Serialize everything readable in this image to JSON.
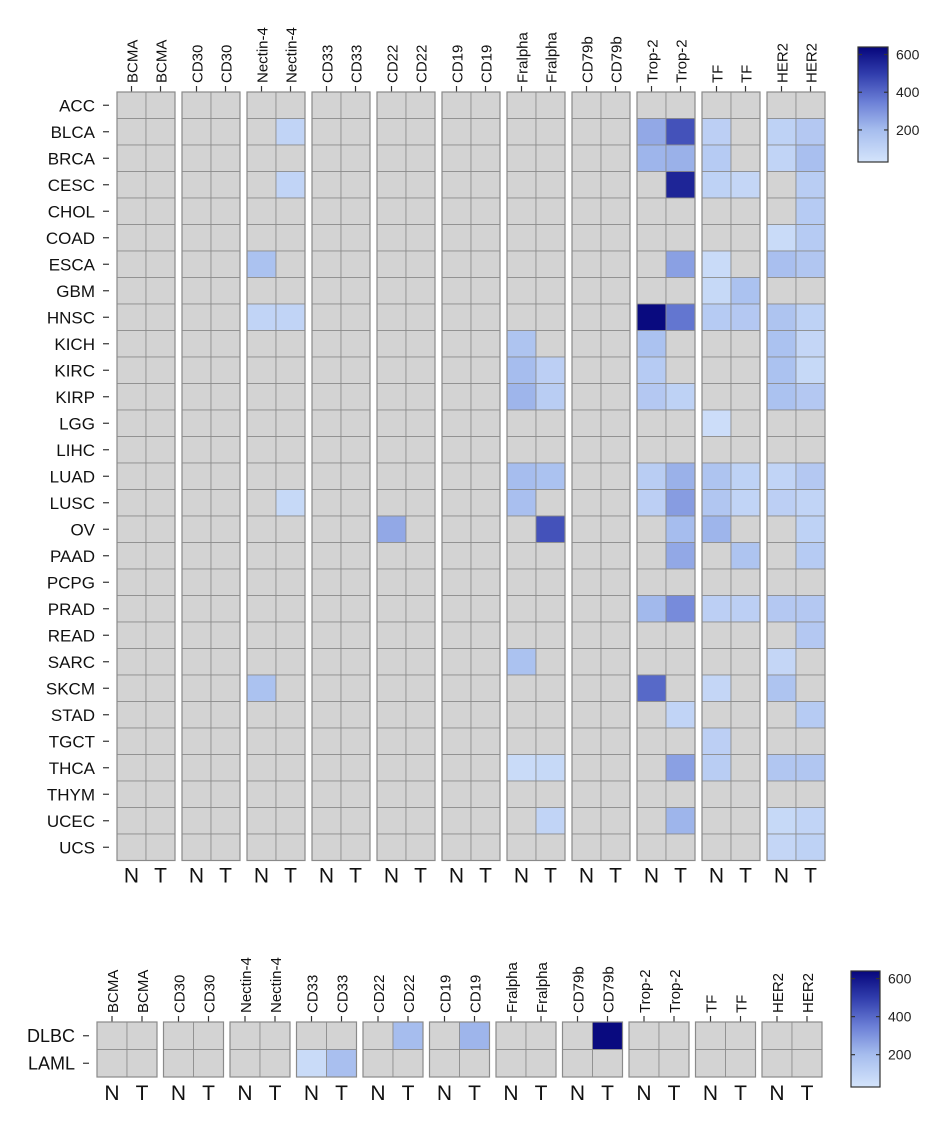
{
  "chart_data": [
    {
      "type": "heatmap",
      "antigens": [
        "BCMA",
        "CD30",
        "Nectin-4",
        "CD33",
        "CD22",
        "CD19",
        "Fralpha",
        "CD79b",
        "Trop-2",
        "TF",
        "HER2"
      ],
      "tissues": [
        "N",
        "T"
      ],
      "rows": [
        "ACC",
        "BLCA",
        "BRCA",
        "CESC",
        "CHOL",
        "COAD",
        "ESCA",
        "GBM",
        "HNSC",
        "KICH",
        "KIRC",
        "KIRP",
        "LGG",
        "LIHC",
        "LUAD",
        "LUSC",
        "OV",
        "PAAD",
        "PCPG",
        "PRAD",
        "READ",
        "SARC",
        "SKCM",
        "STAD",
        "TGCT",
        "THCA",
        "THYM",
        "UCEC",
        "UCS"
      ],
      "missing_color": "#d3d3d3",
      "colorbar": {
        "range": [
          30,
          640
        ],
        "ticks": [
          200,
          400,
          600
        ],
        "low_color": "#d4e4fb",
        "high_color": "#06067c"
      },
      "cells": [
        [
          "BLCA",
          "Nectin-4",
          "T",
          100
        ],
        [
          "BLCA",
          "Trop-2",
          "N",
          250
        ],
        [
          "BLCA",
          "Trop-2",
          "T",
          450
        ],
        [
          "BLCA",
          "TF",
          "N",
          120
        ],
        [
          "BLCA",
          "HER2",
          "N",
          110
        ],
        [
          "BLCA",
          "HER2",
          "T",
          150
        ],
        [
          "BRCA",
          "Trop-2",
          "N",
          220
        ],
        [
          "BRCA",
          "Trop-2",
          "T",
          230
        ],
        [
          "BRCA",
          "TF",
          "N",
          140
        ],
        [
          "BRCA",
          "HER2",
          "N",
          100
        ],
        [
          "BRCA",
          "HER2",
          "T",
          190
        ],
        [
          "CESC",
          "Nectin-4",
          "T",
          100
        ],
        [
          "CESC",
          "Trop-2",
          "T",
          560
        ],
        [
          "CESC",
          "TF",
          "N",
          110
        ],
        [
          "CESC",
          "TF",
          "T",
          90
        ],
        [
          "CESC",
          "HER2",
          "T",
          130
        ],
        [
          "CHOL",
          "HER2",
          "T",
          140
        ],
        [
          "COAD",
          "HER2",
          "N",
          70
        ],
        [
          "COAD",
          "HER2",
          "T",
          140
        ],
        [
          "ESCA",
          "Nectin-4",
          "N",
          180
        ],
        [
          "ESCA",
          "Trop-2",
          "T",
          270
        ],
        [
          "ESCA",
          "TF",
          "N",
          70
        ],
        [
          "ESCA",
          "HER2",
          "N",
          190
        ],
        [
          "ESCA",
          "HER2",
          "T",
          160
        ],
        [
          "GBM",
          "TF",
          "N",
          80
        ],
        [
          "GBM",
          "TF",
          "T",
          180
        ],
        [
          "HNSC",
          "Nectin-4",
          "N",
          100
        ],
        [
          "HNSC",
          "Nectin-4",
          "T",
          100
        ],
        [
          "HNSC",
          "Trop-2",
          "N",
          630
        ],
        [
          "HNSC",
          "Trop-2",
          "T",
          370
        ],
        [
          "HNSC",
          "TF",
          "N",
          140
        ],
        [
          "HNSC",
          "TF",
          "T",
          150
        ],
        [
          "HNSC",
          "HER2",
          "N",
          170
        ],
        [
          "HNSC",
          "HER2",
          "T",
          110
        ],
        [
          "KICH",
          "Fralpha",
          "N",
          170
        ],
        [
          "KICH",
          "Trop-2",
          "N",
          180
        ],
        [
          "KICH",
          "HER2",
          "N",
          180
        ],
        [
          "KICH",
          "HER2",
          "T",
          90
        ],
        [
          "KIRC",
          "Fralpha",
          "N",
          200
        ],
        [
          "KIRC",
          "Fralpha",
          "T",
          120
        ],
        [
          "KIRC",
          "Trop-2",
          "N",
          140
        ],
        [
          "KIRC",
          "HER2",
          "N",
          180
        ],
        [
          "KIRC",
          "HER2",
          "T",
          80
        ],
        [
          "KIRP",
          "Fralpha",
          "N",
          220
        ],
        [
          "KIRP",
          "Fralpha",
          "T",
          130
        ],
        [
          "KIRP",
          "Trop-2",
          "N",
          150
        ],
        [
          "KIRP",
          "Trop-2",
          "T",
          110
        ],
        [
          "KIRP",
          "HER2",
          "N",
          180
        ],
        [
          "KIRP",
          "HER2",
          "T",
          150
        ],
        [
          "LGG",
          "TF",
          "N",
          60
        ],
        [
          "LUAD",
          "Fralpha",
          "N",
          200
        ],
        [
          "LUAD",
          "Fralpha",
          "T",
          180
        ],
        [
          "LUAD",
          "Trop-2",
          "N",
          130
        ],
        [
          "LUAD",
          "Trop-2",
          "T",
          230
        ],
        [
          "LUAD",
          "TF",
          "N",
          170
        ],
        [
          "LUAD",
          "TF",
          "T",
          110
        ],
        [
          "LUAD",
          "HER2",
          "N",
          100
        ],
        [
          "LUAD",
          "HER2",
          "T",
          150
        ],
        [
          "LUSC",
          "Nectin-4",
          "T",
          80
        ],
        [
          "LUSC",
          "Fralpha",
          "N",
          190
        ],
        [
          "LUSC",
          "Trop-2",
          "N",
          120
        ],
        [
          "LUSC",
          "Trop-2",
          "T",
          280
        ],
        [
          "LUSC",
          "TF",
          "N",
          160
        ],
        [
          "LUSC",
          "TF",
          "T",
          100
        ],
        [
          "LUSC",
          "HER2",
          "N",
          120
        ],
        [
          "LUSC",
          "HER2",
          "T",
          100
        ],
        [
          "OV",
          "CD22",
          "N",
          250
        ],
        [
          "OV",
          "Fralpha",
          "T",
          450
        ],
        [
          "OV",
          "Trop-2",
          "T",
          200
        ],
        [
          "OV",
          "TF",
          "N",
          220
        ],
        [
          "OV",
          "HER2",
          "T",
          110
        ],
        [
          "PAAD",
          "Trop-2",
          "T",
          250
        ],
        [
          "PAAD",
          "TF",
          "T",
          170
        ],
        [
          "PAAD",
          "HER2",
          "T",
          140
        ],
        [
          "PRAD",
          "Trop-2",
          "N",
          210
        ],
        [
          "PRAD",
          "Trop-2",
          "T",
          320
        ],
        [
          "PRAD",
          "TF",
          "N",
          120
        ],
        [
          "PRAD",
          "TF",
          "T",
          120
        ],
        [
          "PRAD",
          "HER2",
          "N",
          150
        ],
        [
          "PRAD",
          "HER2",
          "T",
          150
        ],
        [
          "READ",
          "HER2",
          "T",
          150
        ],
        [
          "SARC",
          "Fralpha",
          "N",
          180
        ],
        [
          "SARC",
          "HER2",
          "N",
          90
        ],
        [
          "SKCM",
          "Nectin-4",
          "N",
          180
        ],
        [
          "SKCM",
          "Trop-2",
          "N",
          400
        ],
        [
          "SKCM",
          "TF",
          "N",
          90
        ],
        [
          "SKCM",
          "HER2",
          "N",
          170
        ],
        [
          "STAD",
          "Trop-2",
          "T",
          100
        ],
        [
          "STAD",
          "HER2",
          "T",
          140
        ],
        [
          "TGCT",
          "TF",
          "N",
          120
        ],
        [
          "THCA",
          "Fralpha",
          "N",
          70
        ],
        [
          "THCA",
          "Fralpha",
          "T",
          80
        ],
        [
          "THCA",
          "Trop-2",
          "T",
          270
        ],
        [
          "THCA",
          "TF",
          "N",
          130
        ],
        [
          "THCA",
          "HER2",
          "N",
          160
        ],
        [
          "THCA",
          "HER2",
          "T",
          160
        ],
        [
          "UCEC",
          "Fralpha",
          "T",
          100
        ],
        [
          "UCEC",
          "Trop-2",
          "T",
          220
        ],
        [
          "UCEC",
          "HER2",
          "N",
          80
        ],
        [
          "UCEC",
          "HER2",
          "T",
          100
        ],
        [
          "UCS",
          "HER2",
          "N",
          90
        ],
        [
          "UCS",
          "HER2",
          "T",
          110
        ]
      ]
    },
    {
      "type": "heatmap",
      "antigens": [
        "BCMA",
        "CD30",
        "Nectin-4",
        "CD33",
        "CD22",
        "CD19",
        "Fralpha",
        "CD79b",
        "Trop-2",
        "TF",
        "HER2"
      ],
      "tissues": [
        "N",
        "T"
      ],
      "rows": [
        "DLBC",
        "LAML"
      ],
      "missing_color": "#d3d3d3",
      "colorbar": {
        "range": [
          30,
          640
        ],
        "ticks": [
          200,
          400,
          600
        ],
        "low_color": "#d4e4fb",
        "high_color": "#06067c"
      },
      "cells": [
        [
          "DLBC",
          "CD22",
          "T",
          200
        ],
        [
          "DLBC",
          "CD19",
          "T",
          220
        ],
        [
          "DLBC",
          "CD79b",
          "T",
          630
        ],
        [
          "LAML",
          "CD33",
          "N",
          70
        ],
        [
          "LAML",
          "CD33",
          "T",
          190
        ]
      ]
    }
  ]
}
